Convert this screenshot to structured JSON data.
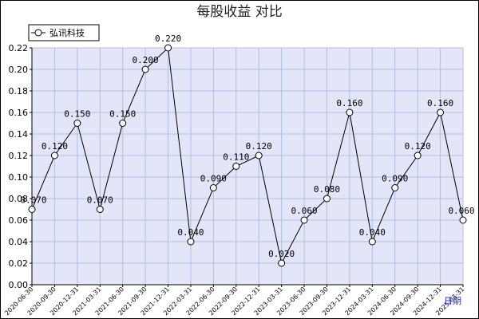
{
  "chart_data": {
    "type": "line",
    "title": "每股收益 对比",
    "xlabel": "日期",
    "ylabel": "",
    "ylim": [
      0,
      0.22
    ],
    "yticks": [
      "0.00",
      "0.02",
      "0.04",
      "0.06",
      "0.08",
      "0.10",
      "0.12",
      "0.14",
      "0.16",
      "0.18",
      "0.20",
      "0.22"
    ],
    "grid": true,
    "legend_position": "top-left",
    "categories": [
      "2020-06-30",
      "2020-09-30",
      "2020-12-31",
      "2021-03-31",
      "2021-06-30",
      "2021-09-30",
      "2021-12-31",
      "2022-03-31",
      "2022-06-30",
      "2022-09-30",
      "2022-12-31",
      "2023-03-31",
      "2023-06-30",
      "2023-09-30",
      "2023-12-31",
      "2024-03-31",
      "2024-06-30",
      "2024-09-30",
      "2024-12-31",
      "2025-03-31"
    ],
    "series": [
      {
        "name": "弘讯科技",
        "values": [
          0.07,
          0.12,
          0.15,
          0.07,
          0.15,
          0.2,
          0.22,
          0.04,
          0.09,
          0.11,
          0.12,
          0.02,
          0.06,
          0.08,
          0.16,
          0.04,
          0.09,
          0.12,
          0.16,
          0.06
        ],
        "labels": [
          "0.070",
          "0.120",
          "0.150",
          "0.070",
          "0.150",
          "0.200",
          "0.220",
          "0.040",
          "0.090",
          "0.110",
          "0.120",
          "0.020",
          "0.060",
          "0.080",
          "0.160",
          "0.040",
          "0.090",
          "0.120",
          "0.160",
          "0.060"
        ]
      }
    ]
  },
  "colors": {
    "plot_background": "#e2e6f8",
    "grid": "#b4bddf",
    "line": "#000000",
    "marker_fill": "#ffffff",
    "axis_name": "#1a2fd6"
  }
}
